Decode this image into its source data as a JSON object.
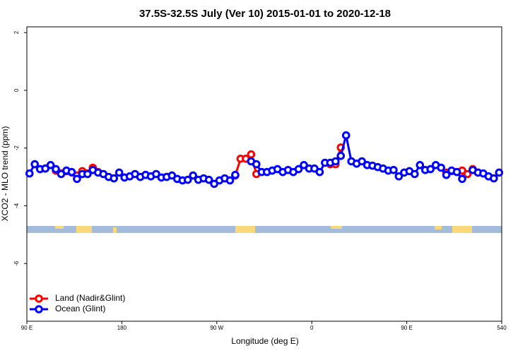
{
  "chart_data": {
    "type": "line",
    "title": "37.5S-32.5S July (Ver 10)   2015-01-01 to 2020-12-18",
    "x_label": "Longitude (deg E)",
    "y_label": "XCO2 - MLO trend (ppm)",
    "x": [
      92.5,
      97.5,
      102.5,
      107.5,
      112.5,
      117.5,
      122.5,
      127.5,
      132.5,
      137.5,
      142.5,
      147.5,
      152.5,
      157.5,
      162.5,
      167.5,
      172.5,
      177.5,
      182.5,
      187.5,
      192.5,
      197.5,
      202.5,
      207.5,
      212.5,
      217.5,
      222.5,
      227.5,
      232.5,
      237.5,
      242.5,
      247.5,
      252.5,
      257.5,
      262.5,
      267.5,
      272.5,
      277.5,
      282.5,
      287.5,
      292.5,
      297.5,
      302.5,
      307.5,
      312.5,
      317.5,
      322.5,
      327.5,
      332.5,
      337.5,
      342.5,
      347.5,
      352.5,
      357.5,
      362.5,
      367.5,
      372.5,
      377.5,
      382.5,
      387.5,
      392.5,
      397.5,
      402.5,
      407.5,
      412.5,
      417.5,
      422.5,
      427.5,
      432.5,
      437.5,
      442.5,
      447.5,
      452.5,
      457.5,
      462.5,
      467.5,
      472.5,
      477.5,
      482.5,
      487.5,
      492.5,
      497.5,
      502.5,
      507.5,
      512.5,
      517.5,
      522.5,
      527.5,
      532.5,
      537.5
    ],
    "series": [
      {
        "name": "Land (Nadir&Glint)",
        "color": "#ff0000",
        "values": [
          null,
          null,
          null,
          null,
          null,
          -2.78,
          -2.88,
          -2.8,
          -2.85,
          -2.95,
          -2.8,
          -2.88,
          -2.68,
          -2.83,
          null,
          null,
          null,
          null,
          null,
          null,
          null,
          null,
          null,
          null,
          null,
          null,
          null,
          null,
          null,
          null,
          null,
          null,
          null,
          null,
          null,
          null,
          null,
          null,
          null,
          -2.95,
          -2.37,
          -2.37,
          -2.22,
          -2.9,
          null,
          null,
          null,
          null,
          null,
          null,
          null,
          null,
          null,
          null,
          null,
          null,
          null,
          -2.56,
          -2.56,
          -1.98,
          null,
          null,
          null,
          null,
          null,
          null,
          null,
          null,
          null,
          null,
          null,
          null,
          null,
          null,
          null,
          null,
          null,
          null,
          null,
          -2.85,
          -2.8,
          -2.83,
          -2.78,
          -2.9,
          -2.73,
          -2.85,
          null,
          null,
          null,
          null
        ]
      },
      {
        "name": "Ocean (Glint)",
        "color": "#0000ff",
        "values": [
          -2.88,
          -2.56,
          -2.73,
          -2.71,
          -2.59,
          -2.73,
          -2.9,
          -2.78,
          -2.83,
          -3.07,
          -2.9,
          -2.9,
          -2.76,
          -2.85,
          -2.9,
          -3.0,
          -3.05,
          -2.85,
          -3.02,
          -2.98,
          -2.9,
          -3.0,
          -2.93,
          -2.98,
          -2.9,
          -3.02,
          -3.0,
          -2.95,
          -3.07,
          -3.12,
          -3.1,
          -2.95,
          -3.1,
          -3.05,
          -3.1,
          -3.24,
          -3.12,
          -3.05,
          -3.12,
          -2.93,
          null,
          null,
          -2.46,
          -2.56,
          -2.83,
          -2.83,
          -2.78,
          -2.73,
          -2.83,
          -2.76,
          -2.83,
          -2.73,
          -2.59,
          -2.71,
          -2.71,
          -2.83,
          -2.51,
          -2.51,
          -2.46,
          -2.27,
          -1.56,
          -2.46,
          -2.54,
          -2.46,
          -2.59,
          -2.61,
          -2.66,
          -2.71,
          -2.78,
          -2.76,
          -2.98,
          -2.85,
          -2.8,
          -2.9,
          -2.59,
          -2.76,
          -2.73,
          -2.59,
          -2.68,
          -2.93,
          -2.78,
          -2.83,
          -3.07,
          null,
          -2.76,
          -2.85,
          -2.88,
          -2.98,
          -3.05,
          -2.85
        ]
      }
    ],
    "xlim": [
      90,
      540
    ],
    "xticks": [
      {
        "value": 90,
        "label": "90 E"
      },
      180,
      {
        "value": 270,
        "label": "90 W"
      },
      {
        "value": 360,
        "label": "0"
      },
      {
        "value": 450,
        "label": "90 E"
      },
      540
    ],
    "ylim": [
      -8,
      2.2
    ],
    "yticks": [
      -6,
      -4,
      -2,
      0,
      2
    ],
    "legend": "bottom-left"
  }
}
